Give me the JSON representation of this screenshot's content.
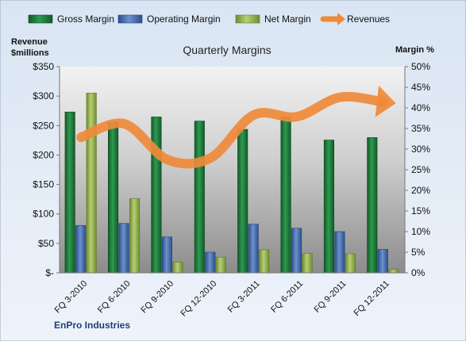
{
  "chart_data": {
    "type": "bar",
    "title": "Quarterly Margins",
    "categories": [
      "FQ 3-2010",
      "FQ 6-2010",
      "FQ 9-2010",
      "FQ 12-2010",
      "FQ 3-2011",
      "FQ 6-2011",
      "FQ 9-2011",
      "FQ 12-2011"
    ],
    "left_axis": {
      "label_line1": "Revenue",
      "label_line2": "$millions",
      "min": 0,
      "max": 350,
      "step": 50,
      "tick_labels": [
        "$-",
        "$50",
        "$100",
        "$150",
        "$200",
        "$250",
        "$300",
        "$350"
      ]
    },
    "right_axis": {
      "label": "Margin %",
      "min": 0,
      "max": 50,
      "step": 5,
      "tick_labels": [
        "0%",
        "5%",
        "10%",
        "15%",
        "20%",
        "25%",
        "30%",
        "35%",
        "40%",
        "45%",
        "50%"
      ]
    },
    "series": [
      {
        "name": "Gross Margin",
        "axis": "right",
        "color": "#1e7a3c",
        "values": [
          39.0,
          36.5,
          37.8,
          36.8,
          34.8,
          37.8,
          32.2,
          32.8
        ]
      },
      {
        "name": "Operating Margin",
        "axis": "right",
        "color": "#3f66a8",
        "values": [
          11.5,
          12.0,
          8.7,
          5.0,
          11.8,
          10.8,
          10.0,
          5.7
        ]
      },
      {
        "name": "Net Margin",
        "axis": "right",
        "color": "#8fae4a",
        "values": [
          43.6,
          18.0,
          2.6,
          3.8,
          5.6,
          4.7,
          4.6,
          0.8
        ]
      },
      {
        "name": "Revenues",
        "axis": "left",
        "type": "line",
        "color": "#ef8a3a",
        "values": [
          230,
          253,
          192,
          195,
          268,
          265,
          298,
          290
        ]
      }
    ],
    "legend_position": "top",
    "footer": "EnPro Industries",
    "grid": false
  }
}
